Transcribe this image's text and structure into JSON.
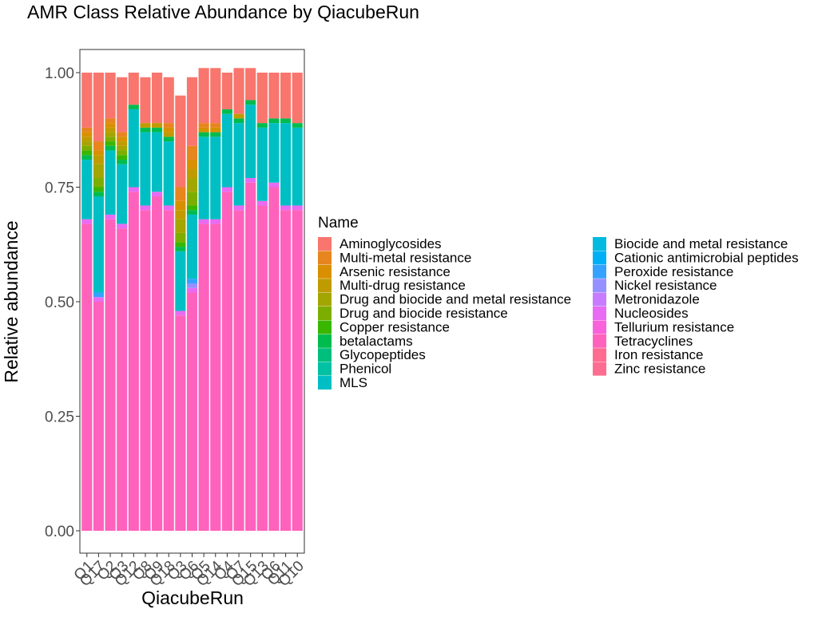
{
  "chart_data": {
    "type": "bar",
    "stacked": true,
    "title": "AMR Class Relative Abundance by QiacubeRun",
    "xlabel": "QiacubeRun",
    "ylabel": "Relative abundance",
    "ylim": [
      0,
      1
    ],
    "yticks": [
      "0.00",
      "0.25",
      "0.50",
      "0.75",
      "1.00"
    ],
    "grid": false,
    "legend_title": "Name",
    "legend_position": "right",
    "categories": [
      "Q1",
      "Q17",
      "Q2",
      "Q3",
      "Q12",
      "Q8",
      "Q9",
      "Q18",
      "Q3",
      "Q6",
      "Q5",
      "Q14",
      "Q4",
      "Q7",
      "Q15",
      "Q13",
      "Q6",
      "Q11",
      "Q10"
    ],
    "series": [
      {
        "name": "Aminoglycosides",
        "color": "#F8766D",
        "values": [
          0.12,
          0.15,
          0.1,
          0.12,
          0.07,
          0.1,
          0.11,
          0.1,
          0.2,
          0.15,
          0.12,
          0.12,
          0.08,
          0.1,
          0.07,
          0.11,
          0.1,
          0.1,
          0.11
        ]
      },
      {
        "name": "Multi-metal resistance",
        "color": "#E7851E",
        "values": [
          0.01,
          0.02,
          0.01,
          0.01,
          0.0,
          0.0,
          0.0,
          0.01,
          0.03,
          0.03,
          0.01,
          0.01,
          0.0,
          0.0,
          0.0,
          0.0,
          0.0,
          0.0,
          0.0
        ]
      },
      {
        "name": "Arsenic resistance",
        "color": "#D89000",
        "values": [
          0.01,
          0.01,
          0.01,
          0.01,
          0.0,
          0.0,
          0.0,
          0.01,
          0.02,
          0.02,
          0.01,
          0.01,
          0.0,
          0.0,
          0.0,
          0.0,
          0.0,
          0.0,
          0.0
        ]
      },
      {
        "name": "Multi-drug resistance",
        "color": "#C09B00",
        "values": [
          0.01,
          0.02,
          0.01,
          0.01,
          0.0,
          0.01,
          0.01,
          0.01,
          0.02,
          0.02,
          0.0,
          0.0,
          0.0,
          0.01,
          0.0,
          0.0,
          0.0,
          0.0,
          0.0
        ]
      },
      {
        "name": "Drug and biocide and metal resistance",
        "color": "#A3A500",
        "values": [
          0.01,
          0.03,
          0.01,
          0.01,
          0.0,
          0.0,
          0.0,
          0.0,
          0.03,
          0.03,
          0.0,
          0.0,
          0.0,
          0.0,
          0.0,
          0.0,
          0.0,
          0.0,
          0.0
        ]
      },
      {
        "name": "Drug and biocide resistance",
        "color": "#7CAE00",
        "values": [
          0.01,
          0.02,
          0.01,
          0.01,
          0.0,
          0.0,
          0.0,
          0.0,
          0.02,
          0.03,
          0.0,
          0.0,
          0.0,
          0.0,
          0.0,
          0.0,
          0.0,
          0.0,
          0.0
        ]
      },
      {
        "name": "Copper resistance",
        "color": "#39B600",
        "values": [
          0.01,
          0.01,
          0.01,
          0.01,
          0.0,
          0.0,
          0.0,
          0.0,
          0.01,
          0.01,
          0.0,
          0.0,
          0.0,
          0.0,
          0.0,
          0.0,
          0.0,
          0.0,
          0.0
        ]
      },
      {
        "name": "betalactams",
        "color": "#00BB4E",
        "values": [
          0.01,
          0.01,
          0.01,
          0.01,
          0.01,
          0.01,
          0.01,
          0.01,
          0.01,
          0.01,
          0.01,
          0.01,
          0.01,
          0.01,
          0.01,
          0.01,
          0.01,
          0.01,
          0.01
        ]
      },
      {
        "name": "Glycopeptides",
        "color": "#00BF7D",
        "values": [
          0.0,
          0.0,
          0.0,
          0.0,
          0.0,
          0.0,
          0.0,
          0.0,
          0.0,
          0.0,
          0.0,
          0.0,
          0.0,
          0.0,
          0.0,
          0.0,
          0.0,
          0.0,
          0.0
        ]
      },
      {
        "name": "Phenicol",
        "color": "#00C1A3",
        "values": [
          0.0,
          0.0,
          0.0,
          0.0,
          0.0,
          0.0,
          0.0,
          0.0,
          0.0,
          0.0,
          0.0,
          0.0,
          0.0,
          0.0,
          0.0,
          0.0,
          0.0,
          0.0,
          0.0
        ]
      },
      {
        "name": "MLS",
        "color": "#00BFC4",
        "values": [
          0.13,
          0.21,
          0.14,
          0.13,
          0.17,
          0.16,
          0.13,
          0.14,
          0.13,
          0.14,
          0.18,
          0.18,
          0.16,
          0.18,
          0.16,
          0.16,
          0.13,
          0.18,
          0.17
        ]
      },
      {
        "name": "Biocide and metal resistance",
        "color": "#00BAE0",
        "values": [
          0.0,
          0.0,
          0.0,
          0.0,
          0.0,
          0.0,
          0.0,
          0.0,
          0.0,
          0.0,
          0.0,
          0.0,
          0.0,
          0.0,
          0.0,
          0.0,
          0.0,
          0.0,
          0.0
        ]
      },
      {
        "name": "Cationic antimicrobial peptides",
        "color": "#00B0F6",
        "values": [
          0.0,
          0.0,
          0.0,
          0.0,
          0.0,
          0.0,
          0.0,
          0.0,
          0.0,
          0.0,
          0.0,
          0.0,
          0.0,
          0.0,
          0.0,
          0.0,
          0.0,
          0.0,
          0.0
        ]
      },
      {
        "name": "Peroxide resistance",
        "color": "#35A2FF",
        "values": [
          0.0,
          0.01,
          0.0,
          0.0,
          0.0,
          0.0,
          0.0,
          0.0,
          0.0,
          0.01,
          0.0,
          0.0,
          0.0,
          0.0,
          0.0,
          0.0,
          0.0,
          0.0,
          0.0
        ]
      },
      {
        "name": "Nickel resistance",
        "color": "#9590FF",
        "values": [
          0.0,
          0.0,
          0.0,
          0.0,
          0.0,
          0.0,
          0.0,
          0.0,
          0.0,
          0.01,
          0.0,
          0.0,
          0.0,
          0.0,
          0.0,
          0.0,
          0.0,
          0.0,
          0.0
        ]
      },
      {
        "name": "Metronidazole",
        "color": "#C77CFF",
        "values": [
          0.0,
          0.0,
          0.0,
          0.0,
          0.0,
          0.0,
          0.0,
          0.0,
          0.0,
          0.0,
          0.0,
          0.0,
          0.0,
          0.0,
          0.0,
          0.0,
          0.0,
          0.0,
          0.0
        ]
      },
      {
        "name": "Nucleosides",
        "color": "#E76BF3",
        "values": [
          0.01,
          0.01,
          0.01,
          0.01,
          0.01,
          0.01,
          0.01,
          0.01,
          0.01,
          0.01,
          0.01,
          0.01,
          0.01,
          0.01,
          0.01,
          0.01,
          0.01,
          0.01,
          0.01
        ]
      },
      {
        "name": "Tellurium resistance",
        "color": "#FA62DB",
        "values": [
          0.0,
          0.0,
          0.0,
          0.0,
          0.0,
          0.0,
          0.0,
          0.0,
          0.0,
          0.0,
          0.0,
          0.0,
          0.0,
          0.0,
          0.0,
          0.0,
          0.0,
          0.0,
          0.0
        ]
      },
      {
        "name": "Tetracyclines",
        "color": "#FF62BC",
        "values": [
          0.67,
          0.5,
          0.68,
          0.66,
          0.74,
          0.7,
          0.73,
          0.7,
          0.47,
          0.52,
          0.67,
          0.67,
          0.74,
          0.7,
          0.76,
          0.71,
          0.75,
          0.7,
          0.7
        ]
      },
      {
        "name": "Iron resistance",
        "color": "#FF6C91",
        "values": [
          0.0,
          0.0,
          0.0,
          0.0,
          0.0,
          0.0,
          0.0,
          0.0,
          0.0,
          0.0,
          0.0,
          0.0,
          0.0,
          0.0,
          0.0,
          0.0,
          0.0,
          0.0,
          0.0
        ]
      },
      {
        "name": "Zinc resistance",
        "color": "#FF6C91",
        "values": [
          0.0,
          0.0,
          0.0,
          0.0,
          0.0,
          0.0,
          0.0,
          0.0,
          0.0,
          0.0,
          0.0,
          0.0,
          0.0,
          0.0,
          0.0,
          0.0,
          0.0,
          0.0,
          0.0
        ]
      }
    ]
  }
}
